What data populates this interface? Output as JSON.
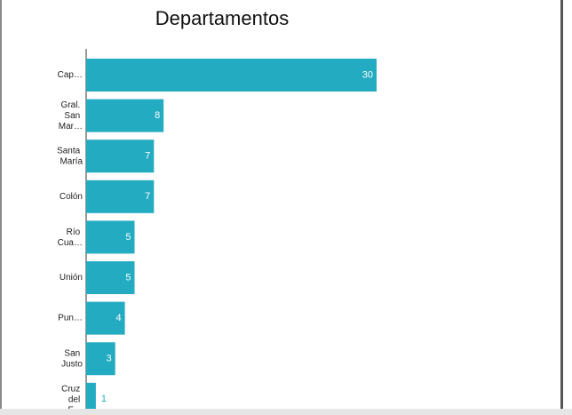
{
  "chart_data": {
    "type": "bar",
    "orientation": "horizontal",
    "title": "Departamentos",
    "categories": [
      "Cap…",
      "Gral. San Mar…",
      "Santa María",
      "Colón",
      "Río Cua…",
      "Unión",
      "Pun…",
      "San Justo",
      "Cruz del E…"
    ],
    "values": [
      30,
      8,
      7,
      7,
      5,
      5,
      4,
      3,
      1
    ],
    "color": "#22abc1"
  }
}
